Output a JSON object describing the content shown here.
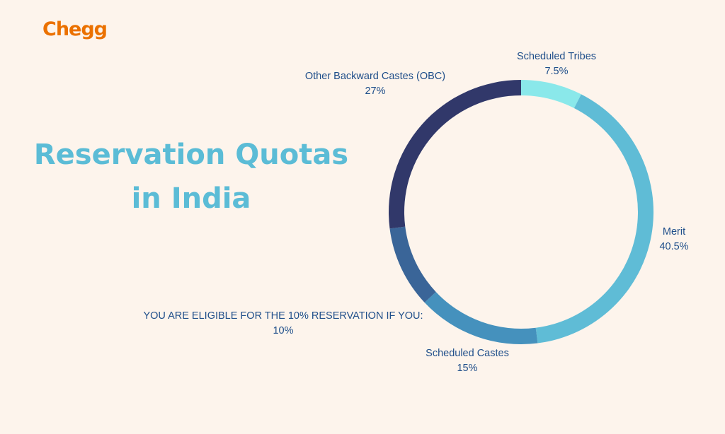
{
  "brand": "Chegg",
  "chart_data": {
    "type": "donut",
    "title": "Reservation Quotas in India",
    "categories": [
      "Scheduled Tribes",
      "Merit",
      "Scheduled Castes",
      "YOU ARE ELIGIBLE FOR THE 10% RESERVATION IF YOU:",
      "Other Backward Castes (OBC)"
    ],
    "values": [
      7.5,
      40.5,
      15,
      10,
      27
    ],
    "value_labels": [
      "7.5%",
      "40.5%",
      "15%",
      "10%",
      "27%"
    ],
    "colors": [
      "#8ae8ea",
      "#5fbcd6",
      "#4591bd",
      "#3a6598",
      "#31386a"
    ]
  }
}
